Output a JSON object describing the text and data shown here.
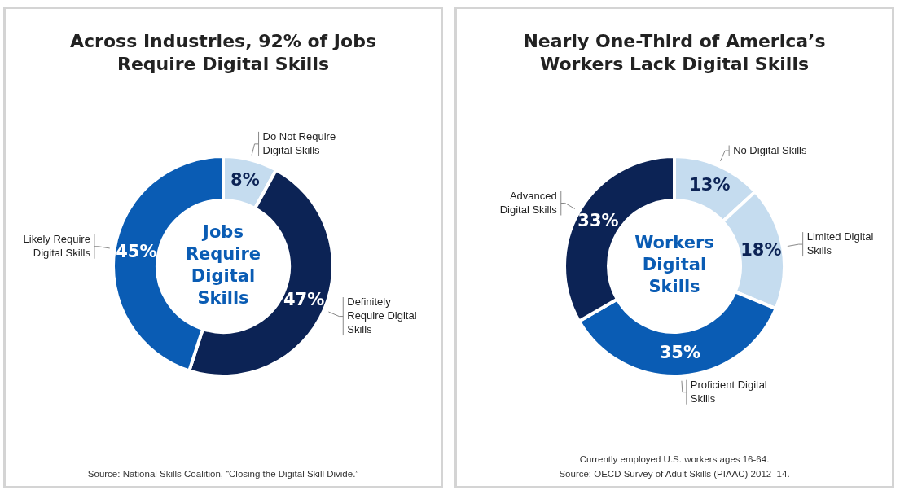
{
  "chart_data": [
    {
      "type": "donut",
      "title": "Across Industries, 92% of Jobs Require Digital Skills",
      "categories": [
        "Do Not Require Digital Skills",
        "Definitely Require Digital Skills",
        "Likely Require Digital Skills"
      ],
      "values": [
        8,
        47,
        45
      ],
      "value_labels": [
        "8%",
        "47%",
        "45%"
      ],
      "colors": [
        "#c5dcef",
        "#0c2355",
        "#0a5cb4"
      ],
      "legend": false,
      "annotations": [
        "Jobs Require Digital Skills",
        "Source: National Skills Coalition, “Closing the Digital Skill Divide.”"
      ]
    },
    {
      "type": "donut",
      "title": "Nearly One-Third of America’s Workers Lack Digital Skills",
      "categories": [
        "No Digital Skills",
        "Limited Digital Skills",
        "Proficient Digital Skills",
        "Advanced Digital Skills"
      ],
      "values": [
        13,
        18,
        35,
        33
      ],
      "value_labels": [
        "13%",
        "18%",
        "35%",
        "33%"
      ],
      "colors": [
        "#c5dcef",
        "#c5dcef",
        "#0a5cb4",
        "#0c2355"
      ],
      "legend": false,
      "annotations": [
        "Workers Digital Skills",
        "Currently employed U.S. workers ages 16-64.",
        "Source: OECD Survey of Adult Skills (PIAAC) 2012–14."
      ]
    }
  ]
}
